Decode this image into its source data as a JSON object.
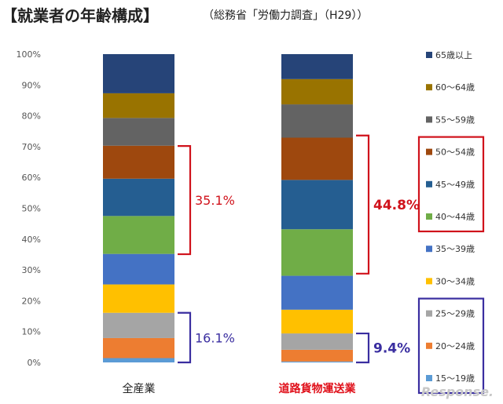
{
  "title": "【就業者の年齢構成】",
  "subtitle": "（総務省「労働力調査」（H29））",
  "watermark": "Response.",
  "colors": {
    "bracket_red": "#d0121b",
    "bracket_purple": "#3a2ea0",
    "xlabel_left": "#222222",
    "xlabel_right": "#e0101a"
  },
  "chart_data": {
    "type": "bar",
    "stacked": true,
    "ylim": [
      0,
      100
    ],
    "yticks": [
      "0%",
      "10%",
      "20%",
      "30%",
      "40%",
      "50%",
      "60%",
      "70%",
      "80%",
      "90%",
      "100%"
    ],
    "grid": false,
    "legend_position": "right",
    "categories": [
      "全産業",
      "道路貨物運送業"
    ],
    "series": [
      {
        "name": "15～19歳",
        "color": "#5b9bd5",
        "values": [
          1.4,
          0.3
        ]
      },
      {
        "name": "20～24歳",
        "color": "#ed7d31",
        "values": [
          6.5,
          3.8
        ]
      },
      {
        "name": "25～29歳",
        "color": "#a5a5a5",
        "values": [
          8.2,
          5.3
        ]
      },
      {
        "name": "30～34歳",
        "color": "#ffc000",
        "values": [
          9.2,
          7.7
        ]
      },
      {
        "name": "35～39歳",
        "color": "#4472c4",
        "values": [
          9.9,
          11.0
        ]
      },
      {
        "name": "40～44歳",
        "color": "#70ad47",
        "values": [
          12.3,
          15.1
        ]
      },
      {
        "name": "45～49歳",
        "color": "#255e91",
        "values": [
          12.1,
          16.0
        ]
      },
      {
        "name": "50～54歳",
        "color": "#9e480e",
        "values": [
          10.7,
          13.7
        ]
      },
      {
        "name": "55～59歳",
        "color": "#636363",
        "values": [
          9.0,
          10.8
        ]
      },
      {
        "name": "60～64歳",
        "color": "#997300",
        "values": [
          8.0,
          8.2
        ]
      },
      {
        "name": "65歳以上",
        "color": "#264478",
        "values": [
          12.7,
          8.1
        ]
      }
    ],
    "annotations": [
      {
        "category": "全産業",
        "from": 35.1,
        "to": 70.2,
        "label": "35.1%",
        "color": "#d0121b",
        "bold": false
      },
      {
        "category": "全産業",
        "from": 0,
        "to": 16.1,
        "label": "16.1%",
        "color": "#3a2ea0",
        "bold": false
      },
      {
        "category": "道路貨物運送業",
        "from": 28.8,
        "to": 73.6,
        "label": "44.8%",
        "color": "#d0121b",
        "bold": true
      },
      {
        "category": "道路貨物運送業",
        "from": 0,
        "to": 9.4,
        "label": "9.4%",
        "color": "#3a2ea0",
        "bold": true
      }
    ],
    "legend_boxes": [
      {
        "series": [
          "50～54歳",
          "45～49歳",
          "40～44歳"
        ],
        "color": "#d0121b"
      },
      {
        "series": [
          "25～29歳",
          "20～24歳",
          "15～19歳"
        ],
        "color": "#3a2ea0"
      }
    ]
  }
}
